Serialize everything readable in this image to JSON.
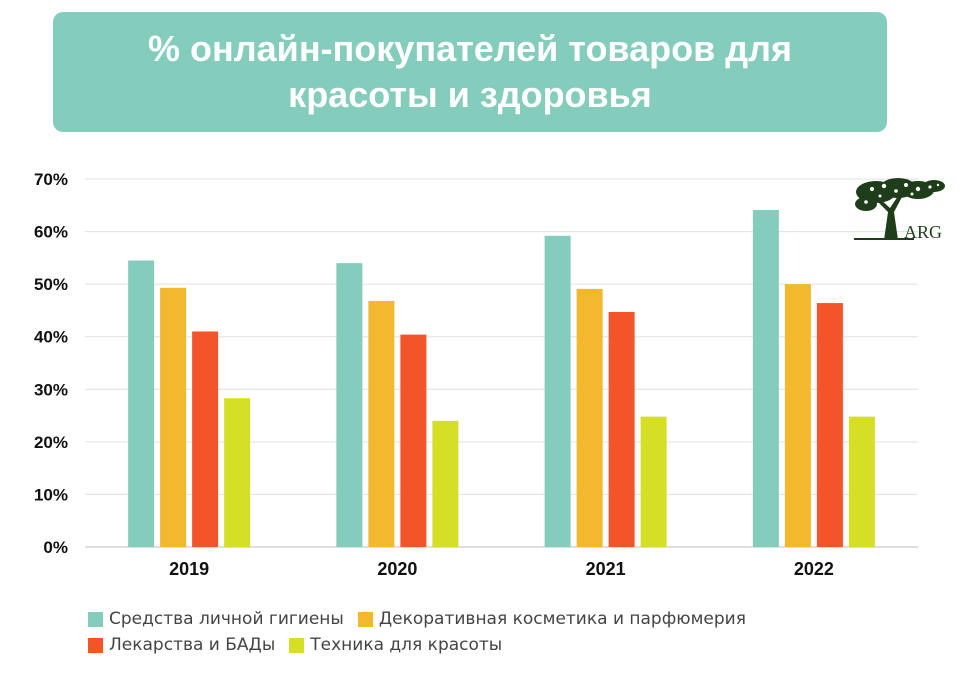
{
  "title_box": {
    "title": "% онлайн-покупателей товаров для красоты и здоровья",
    "color": "#84cdbd"
  },
  "logo": {
    "text": "ARG",
    "icon": "tree-logo-icon",
    "color": "#1f3d1a"
  },
  "chart_data": {
    "type": "bar",
    "title": "% онлайн-покупателей товаров для красоты и здоровья",
    "categories": [
      "2019",
      "2020",
      "2021",
      "2022"
    ],
    "ylim": [
      0,
      70
    ],
    "yticks": [
      0,
      10,
      20,
      30,
      40,
      50,
      60,
      70
    ],
    "ytick_labels": [
      "0%",
      "10%",
      "20%",
      "30%",
      "40%",
      "50%",
      "60%",
      "70%"
    ],
    "grid": true,
    "legend_position": "bottom",
    "series": [
      {
        "name": "Средства личной гигиены",
        "color": "#84cdbd",
        "values": [
          54.5,
          54,
          59.2,
          64.1
        ]
      },
      {
        "name": "Декоративная косметика и парфюмерия",
        "color": "#f2b82e",
        "values": [
          49.3,
          46.8,
          49.1,
          50
        ]
      },
      {
        "name": "Лекарства и БАДы",
        "color": "#f35429",
        "values": [
          41,
          40.4,
          44.7,
          46.4
        ]
      },
      {
        "name": "Техника для красоты",
        "color": "#d5df26",
        "values": [
          28.3,
          24,
          24.8,
          24.8
        ]
      }
    ]
  }
}
